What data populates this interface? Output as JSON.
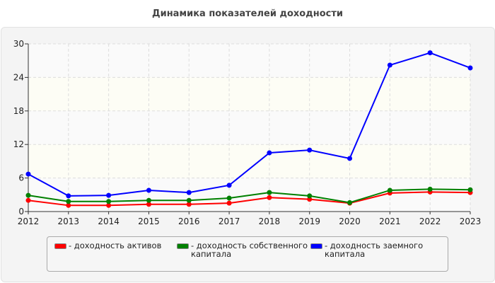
{
  "chart_data": {
    "type": "line",
    "title": "Динамика показателей доходности",
    "categories": [
      "2012",
      "2013",
      "2014",
      "2015",
      "2016",
      "2017",
      "2018",
      "2019",
      "2020",
      "2021",
      "2022",
      "2023"
    ],
    "ylim": [
      0,
      30
    ],
    "yticks": [
      0,
      6,
      12,
      18,
      24,
      30
    ],
    "grid": true,
    "legend_position": "bottom",
    "series": [
      {
        "name": "- доходность активов",
        "color": "#ff0000",
        "values": [
          2.0,
          1.1,
          1.1,
          1.3,
          1.3,
          1.5,
          2.5,
          2.2,
          1.5,
          3.3,
          3.5,
          3.4
        ]
      },
      {
        "name": "- доходность собственного капитала",
        "color": "#008000",
        "values": [
          2.9,
          1.8,
          1.8,
          2.0,
          2.0,
          2.4,
          3.4,
          2.8,
          1.6,
          3.8,
          4.0,
          3.9
        ]
      },
      {
        "name": "- доходность заемного капитала",
        "color": "#0000ff",
        "values": [
          6.7,
          2.8,
          2.9,
          3.8,
          3.4,
          4.7,
          10.5,
          11.0,
          9.5,
          26.2,
          28.4,
          25.7
        ]
      }
    ]
  }
}
